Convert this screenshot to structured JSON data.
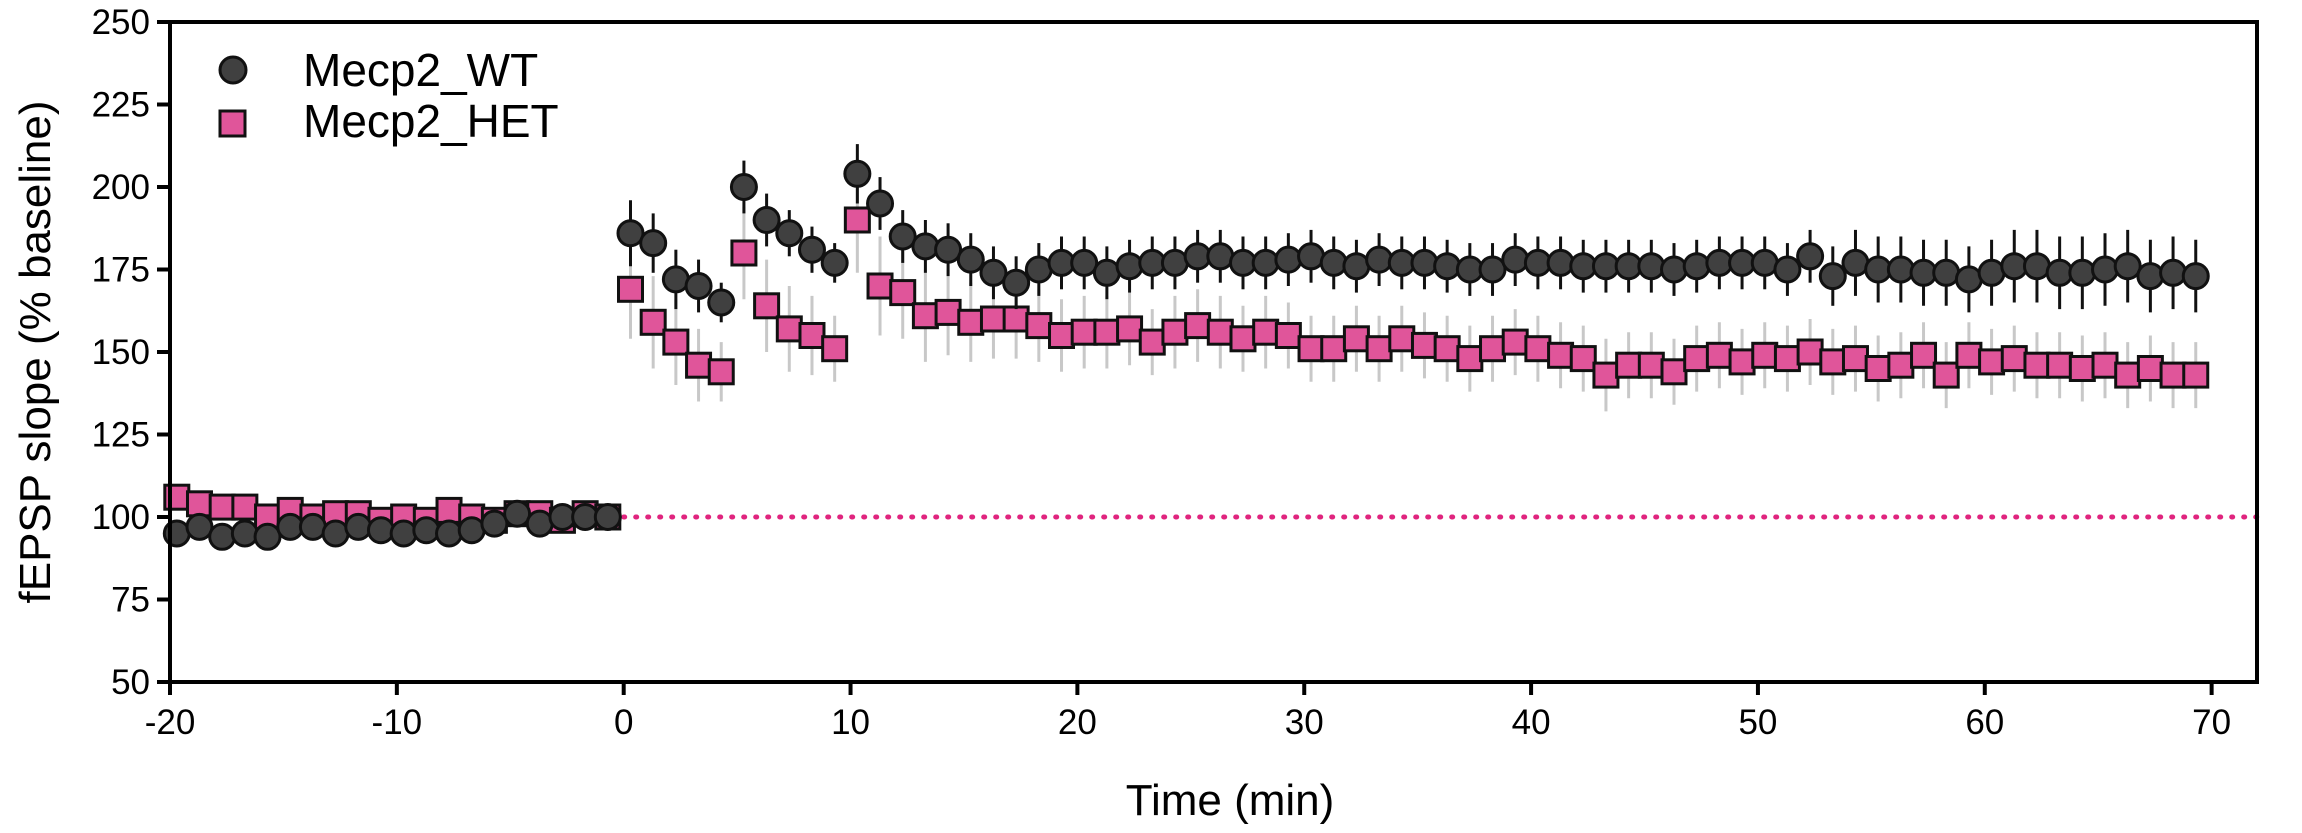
{
  "chart_data": {
    "type": "scatter",
    "xlabel": "Time (min)",
    "ylabel": "fEPSP slope (% baseline)",
    "xlim": [
      -20,
      72
    ],
    "ylim": [
      50,
      250
    ],
    "xticks": [
      -20,
      -10,
      0,
      10,
      20,
      30,
      40,
      50,
      60,
      70
    ],
    "yticks": [
      50,
      75,
      100,
      125,
      150,
      175,
      200,
      225,
      250
    ],
    "x_tick_labels": [
      "-20",
      "-10",
      "0",
      "10",
      "20",
      "30",
      "40",
      "50",
      "60",
      "70"
    ],
    "y_tick_labels": [
      "50",
      "75",
      "100",
      "125",
      "150",
      "175",
      "200",
      "225",
      "250"
    ],
    "legend_position": "top-left",
    "grid": false,
    "reference_line": {
      "y": 100,
      "style": "dotted",
      "color": "#e0247e"
    },
    "series": [
      {
        "name": "Mecp2_HET",
        "marker": "square",
        "color": "#e0559a",
        "edge_color": "#111111",
        "error_color": "#c8c8c8",
        "x": [
          -19.7,
          -18.7,
          -17.7,
          -16.7,
          -15.7,
          -14.7,
          -13.7,
          -12.7,
          -11.7,
          -10.7,
          -9.7,
          -8.7,
          -7.7,
          -6.7,
          -5.7,
          -4.7,
          -3.7,
          -2.7,
          -1.7,
          -0.7,
          0.3,
          1.3,
          2.3,
          3.3,
          4.3,
          5.3,
          6.3,
          7.3,
          8.3,
          9.3,
          10.3,
          11.3,
          12.3,
          13.3,
          14.3,
          15.3,
          16.3,
          17.3,
          18.3,
          19.3,
          20.3,
          21.3,
          22.3,
          23.3,
          24.3,
          25.3,
          26.3,
          27.3,
          28.3,
          29.3,
          30.3,
          31.3,
          32.3,
          33.3,
          34.3,
          35.3,
          36.3,
          37.3,
          38.3,
          39.3,
          40.3,
          41.3,
          42.3,
          43.3,
          44.3,
          45.3,
          46.3,
          47.3,
          48.3,
          49.3,
          50.3,
          51.3,
          52.3,
          53.3,
          54.3,
          55.3,
          56.3,
          57.3,
          58.3,
          59.3,
          60.3,
          61.3,
          62.3,
          63.3,
          64.3,
          65.3,
          66.3,
          67.3,
          68.3,
          69.3
        ],
        "y": [
          106,
          104,
          103,
          103,
          100,
          102,
          100,
          101,
          101,
          99,
          100,
          99,
          102,
          100,
          99,
          101,
          101,
          99,
          101,
          100,
          169,
          159,
          153,
          146,
          144,
          180,
          164,
          157,
          155,
          151,
          190,
          170,
          168,
          161,
          162,
          159,
          160,
          160,
          158,
          155,
          156,
          156,
          157,
          153,
          156,
          158,
          156,
          154,
          156,
          155,
          151,
          151,
          154,
          151,
          154,
          152,
          151,
          148,
          151,
          153,
          151,
          149,
          148,
          143,
          146,
          146,
          144,
          148,
          149,
          147,
          149,
          148,
          150,
          147,
          148,
          145,
          146,
          149,
          143,
          149,
          147,
          148,
          146,
          146,
          145,
          146,
          143,
          145,
          143,
          143
        ],
        "error": [
          3,
          3,
          3,
          3,
          3,
          3,
          3,
          3,
          3,
          3,
          3,
          3,
          3,
          3,
          3,
          3,
          3,
          3,
          3,
          3,
          15,
          14,
          13,
          11,
          9,
          14,
          14,
          13,
          12,
          10,
          16,
          15,
          14,
          14,
          13,
          12,
          12,
          12,
          11,
          11,
          11,
          11,
          11,
          10,
          11,
          11,
          11,
          10,
          11,
          10,
          10,
          10,
          10,
          10,
          10,
          10,
          10,
          10,
          10,
          10,
          10,
          10,
          10,
          11,
          10,
          10,
          10,
          10,
          10,
          10,
          10,
          10,
          10,
          10,
          10,
          10,
          10,
          10,
          10,
          10,
          10,
          10,
          10,
          10,
          10,
          10,
          10,
          10,
          10,
          10
        ]
      },
      {
        "name": "Mecp2_WT",
        "marker": "circle",
        "color": "#404040",
        "edge_color": "#111111",
        "error_color": "#111111",
        "x": [
          -19.7,
          -18.7,
          -17.7,
          -16.7,
          -15.7,
          -14.7,
          -13.7,
          -12.7,
          -11.7,
          -10.7,
          -9.7,
          -8.7,
          -7.7,
          -6.7,
          -5.7,
          -4.7,
          -3.7,
          -2.7,
          -1.7,
          -0.7,
          0.3,
          1.3,
          2.3,
          3.3,
          4.3,
          5.3,
          6.3,
          7.3,
          8.3,
          9.3,
          10.3,
          11.3,
          12.3,
          13.3,
          14.3,
          15.3,
          16.3,
          17.3,
          18.3,
          19.3,
          20.3,
          21.3,
          22.3,
          23.3,
          24.3,
          25.3,
          26.3,
          27.3,
          28.3,
          29.3,
          30.3,
          31.3,
          32.3,
          33.3,
          34.3,
          35.3,
          36.3,
          37.3,
          38.3,
          39.3,
          40.3,
          41.3,
          42.3,
          43.3,
          44.3,
          45.3,
          46.3,
          47.3,
          48.3,
          49.3,
          50.3,
          51.3,
          52.3,
          53.3,
          54.3,
          55.3,
          56.3,
          57.3,
          58.3,
          59.3,
          60.3,
          61.3,
          62.3,
          63.3,
          64.3,
          65.3,
          66.3,
          67.3,
          68.3,
          69.3
        ],
        "y": [
          95,
          97,
          94,
          95,
          94,
          97,
          97,
          95,
          97,
          96,
          95,
          96,
          95,
          96,
          98,
          101,
          98,
          100,
          100,
          100,
          186,
          183,
          172,
          170,
          165,
          200,
          190,
          186,
          181,
          177,
          204,
          195,
          185,
          182,
          181,
          178,
          174,
          171,
          175,
          177,
          177,
          174,
          176,
          177,
          177,
          179,
          179,
          177,
          177,
          178,
          179,
          177,
          176,
          178,
          177,
          177,
          176,
          175,
          175,
          178,
          177,
          177,
          176,
          176,
          176,
          176,
          175,
          176,
          177,
          177,
          177,
          175,
          179,
          173,
          177,
          175,
          175,
          174,
          174,
          172,
          174,
          176,
          176,
          174,
          174,
          175,
          176,
          173,
          174,
          173
        ],
        "error": [
          3,
          3,
          3,
          3,
          3,
          3,
          3,
          3,
          3,
          3,
          3,
          3,
          3,
          3,
          3,
          3,
          3,
          3,
          3,
          3,
          10,
          9,
          9,
          8,
          6,
          8,
          8,
          7,
          7,
          6,
          9,
          8,
          8,
          8,
          8,
          8,
          8,
          8,
          8,
          8,
          8,
          8,
          8,
          8,
          8,
          8,
          8,
          8,
          8,
          8,
          8,
          8,
          8,
          8,
          8,
          8,
          8,
          8,
          8,
          8,
          8,
          8,
          8,
          8,
          8,
          8,
          8,
          8,
          8,
          8,
          8,
          8,
          8,
          9,
          10,
          10,
          10,
          10,
          10,
          10,
          10,
          11,
          11,
          11,
          11,
          11,
          11,
          11,
          11,
          11
        ]
      }
    ],
    "legend": [
      {
        "label": "Mecp2_WT",
        "marker": "circle"
      },
      {
        "label": "Mecp2_HET",
        "marker": "square"
      }
    ]
  }
}
